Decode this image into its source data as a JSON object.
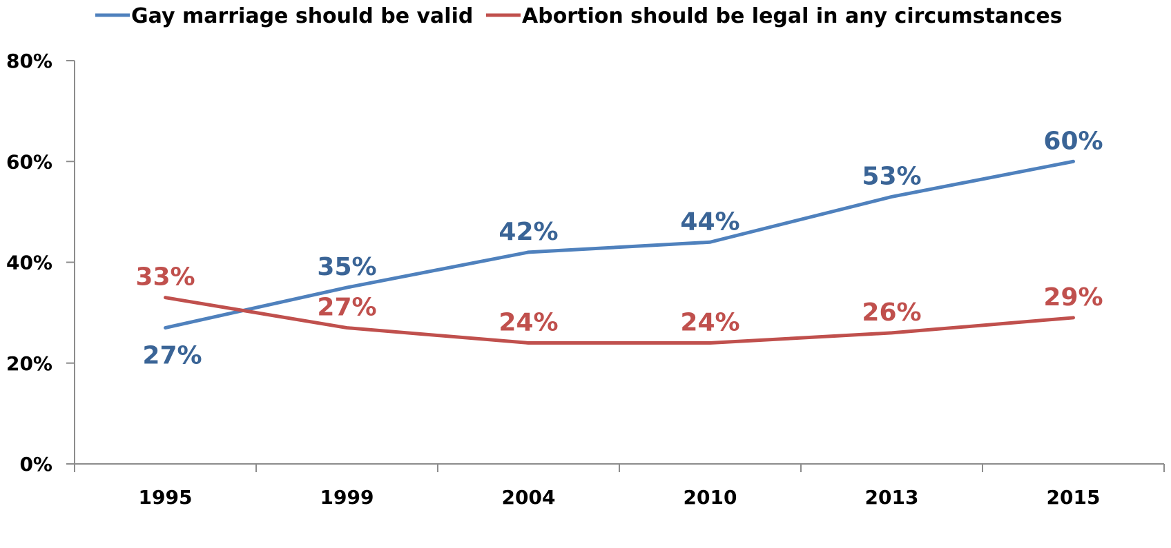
{
  "chart_data": {
    "type": "line",
    "title": "",
    "xlabel": "",
    "ylabel": "",
    "categories": [
      "1995",
      "1999",
      "2004",
      "2010",
      "2013",
      "2015"
    ],
    "ylim": [
      0,
      80
    ],
    "yticks": [
      0,
      20,
      40,
      60,
      80
    ],
    "ytick_labels": [
      "0%",
      "20%",
      "40%",
      "60%",
      "80%"
    ],
    "grid": false,
    "legend_position": "top",
    "series": [
      {
        "name": "Gay marriage should be valid",
        "color": "#4f81bd",
        "label_color": "#3a6496",
        "values": [
          27,
          35,
          42,
          44,
          53,
          60
        ],
        "labels": [
          "27%",
          "35%",
          "42%",
          "44%",
          "53%",
          "60%"
        ],
        "label_placement": [
          "below",
          "above",
          "above",
          "above",
          "above",
          "above"
        ]
      },
      {
        "name": "Abortion should be legal in any circumstances",
        "color": "#c0504d",
        "label_color": "#c0504d",
        "values": [
          33,
          27,
          24,
          24,
          26,
          29
        ],
        "labels": [
          "33%",
          "27%",
          "24%",
          "24%",
          "26%",
          "29%"
        ],
        "label_placement": [
          "above",
          "above",
          "above",
          "above",
          "above",
          "above"
        ]
      }
    ]
  }
}
